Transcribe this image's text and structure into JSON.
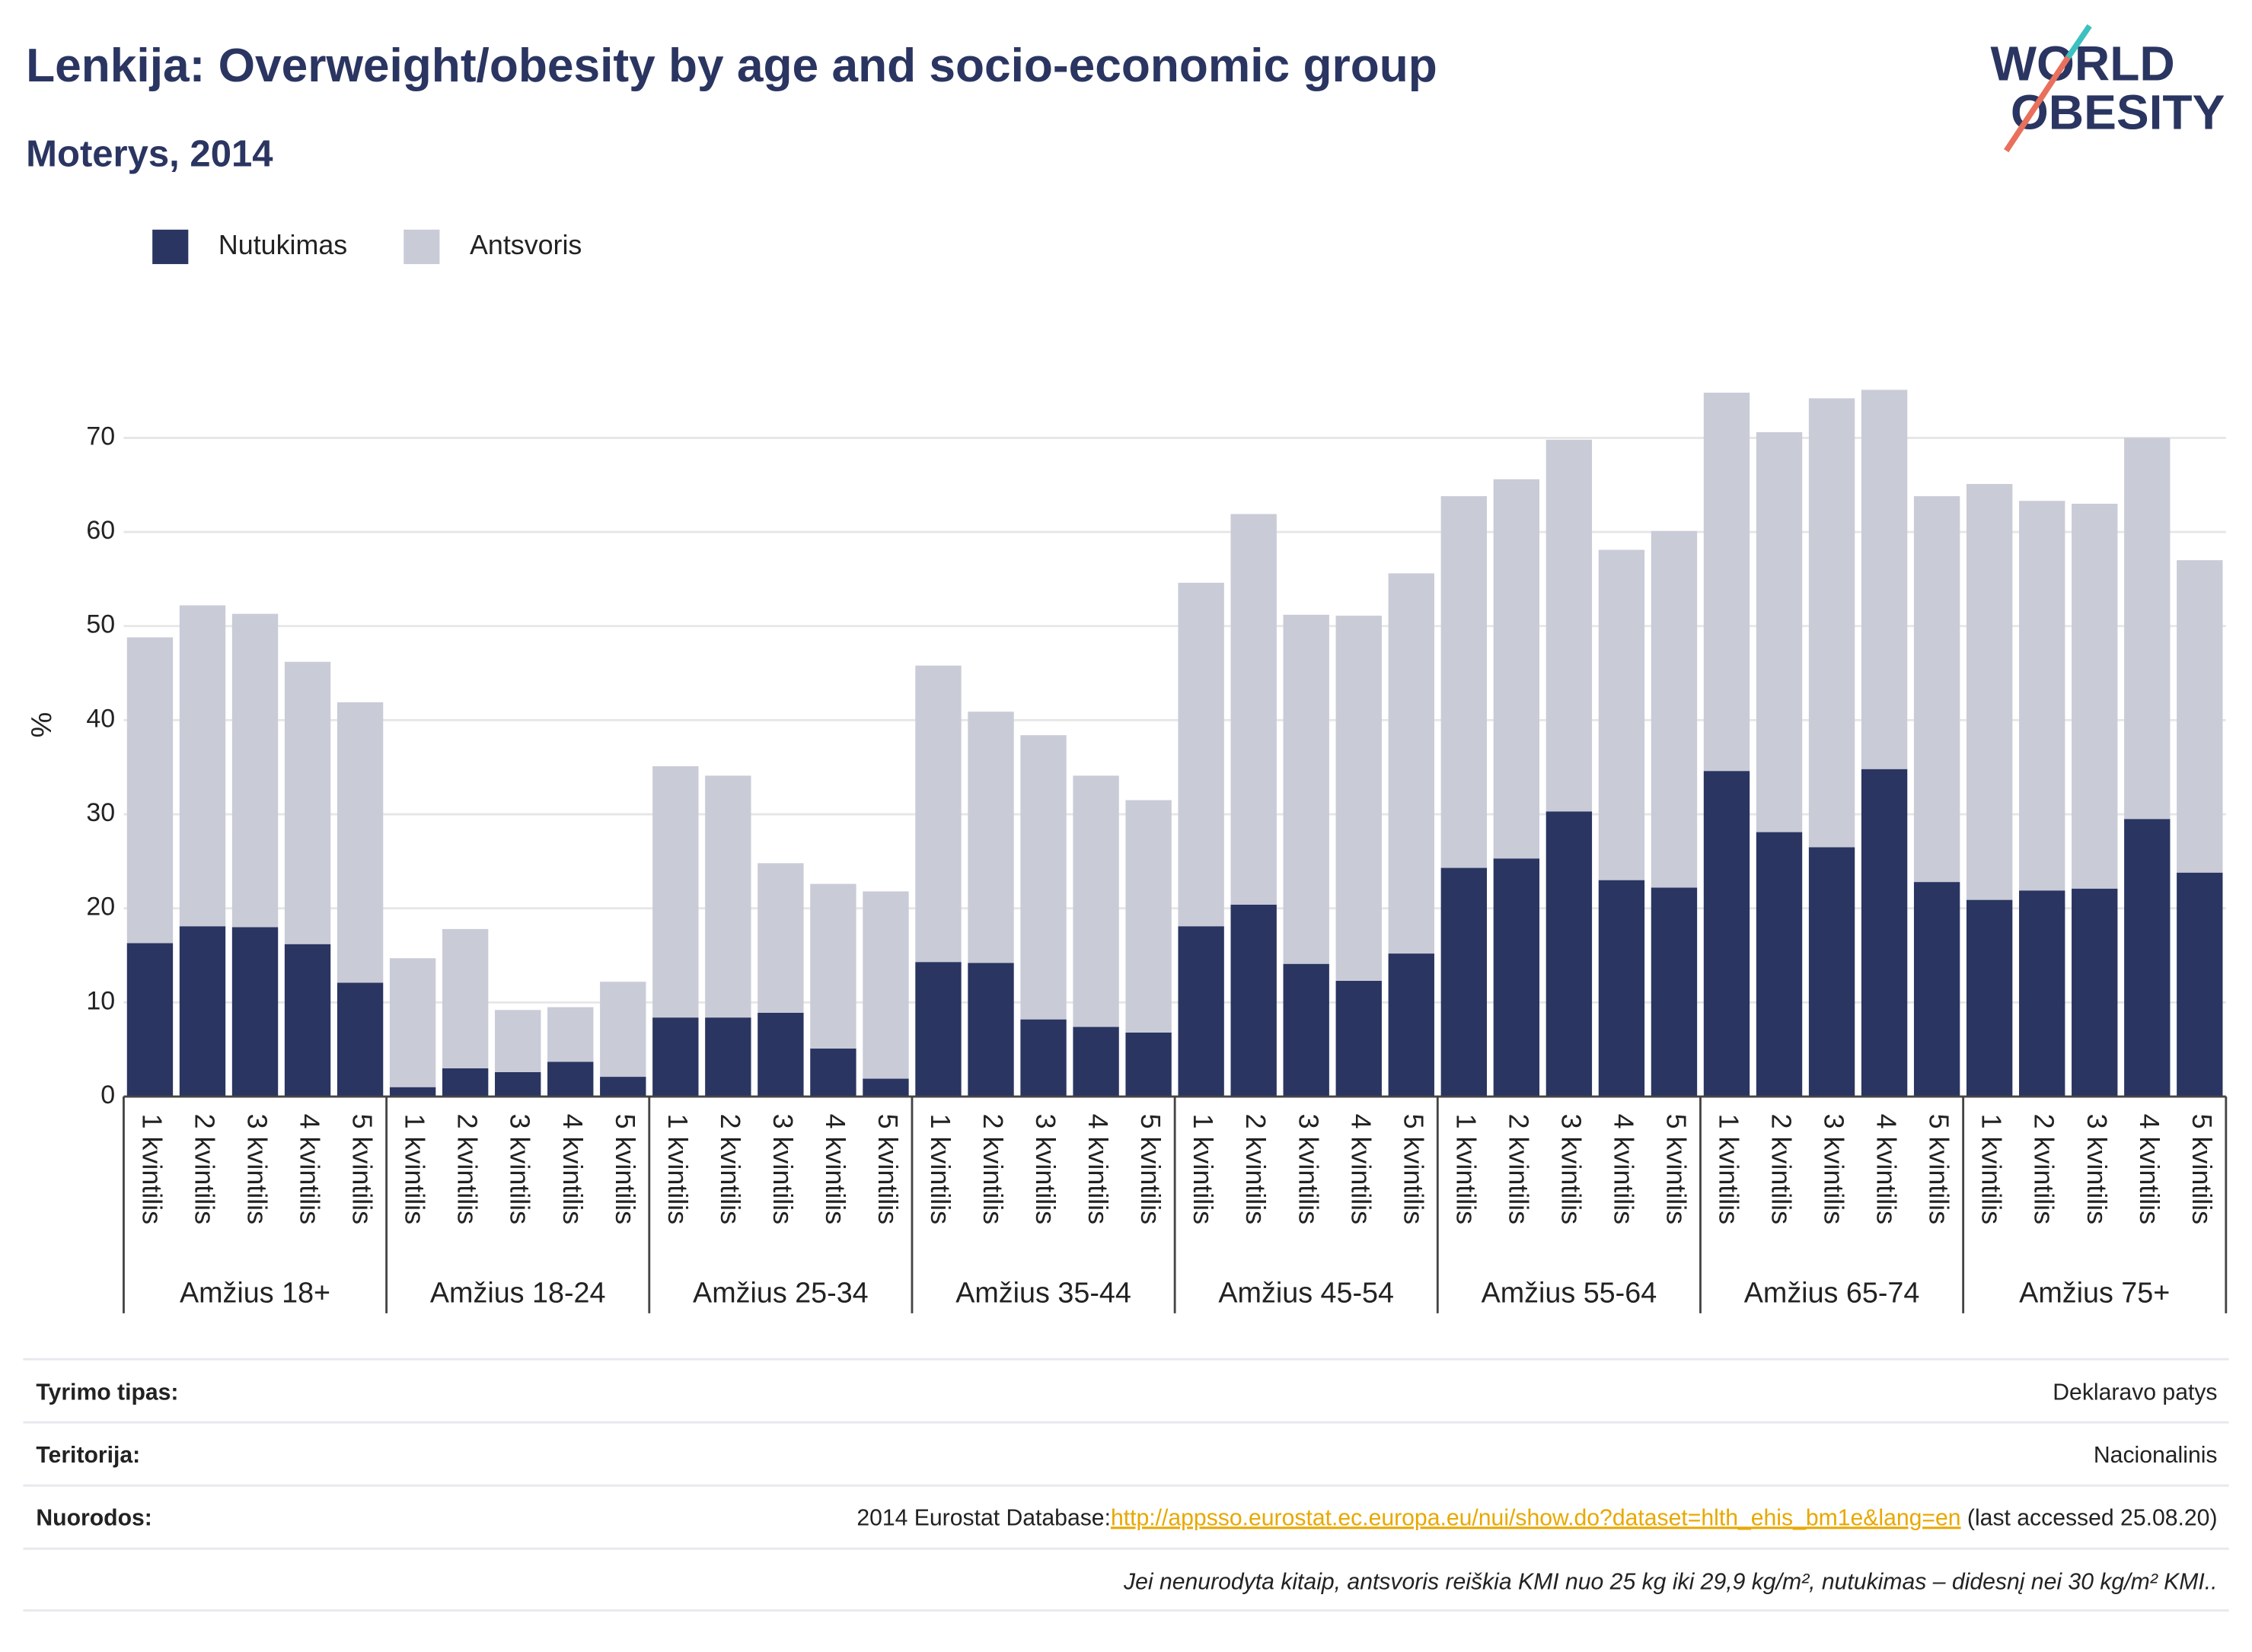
{
  "chart_data": {
    "type": "stacked_bar",
    "title": "Lenkija: Overweight/obesity by age and socio-economic group",
    "subtitle": "Moterys, 2014",
    "y_label": "%",
    "logo": [
      "WORLD",
      "OBESITY"
    ],
    "categories": [
      "1 kvintilis",
      "2 kvintilis",
      "3 kvintilis",
      "4 kvintilis",
      "5 kvintilis",
      "1 kvintilis",
      "2 kvintilis",
      "3 kvintilis",
      "4 kvintilis",
      "5 kvintilis",
      "1 kvintilis",
      "2 kvintilis",
      "3 kvintilis",
      "4 kvintilis",
      "5 kvintilis",
      "1 kvintilis",
      "2 kvintilis",
      "3 kvintilis",
      "4 kvintilis",
      "5 kvintilis",
      "1 kvintilis",
      "2 kvintilis",
      "3 kvintilis",
      "4 kvintilis",
      "5 kvintilis",
      "1 kvintilis",
      "2 kvintilis",
      "3 kvintilis",
      "4 kvintilis",
      "5 kvintilis",
      "1 kvintilis",
      "2 kvintilis",
      "3 kvintilis",
      "4 kvintilis",
      "5 kvintilis",
      "1 kvintilis",
      "2 kvintilis",
      "3 kvintilis",
      "4 kvintilis",
      "5 kvintilis"
    ],
    "groups": [
      "Amžius 18+",
      "Amžius 18-24",
      "Amžius 25-34",
      "Amžius 35-44",
      "Amžius 45-54",
      "Amžius 55-64",
      "Amžius 65-74",
      "Amžius 75+"
    ],
    "series": [
      {
        "name": "Nutukimas",
        "color": "#2a3561",
        "values": [
          16.3,
          18.1,
          18.0,
          16.2,
          12.1,
          1.0,
          3.0,
          2.6,
          3.7,
          2.1,
          8.4,
          8.4,
          8.9,
          5.1,
          1.9,
          14.3,
          14.2,
          8.2,
          7.4,
          6.8,
          18.1,
          20.4,
          14.1,
          12.3,
          15.2,
          24.3,
          25.3,
          30.3,
          23.0,
          22.2,
          34.6,
          28.1,
          26.5,
          34.8,
          22.8,
          20.9,
          21.9,
          22.1,
          29.5,
          23.8
        ]
      },
      {
        "name": "Antsvoris",
        "color": "#c9cbd7",
        "values": [
          32.5,
          34.1,
          33.3,
          30.0,
          29.8,
          13.7,
          14.8,
          6.6,
          5.8,
          10.1,
          26.7,
          25.7,
          15.9,
          17.5,
          19.9,
          31.5,
          26.7,
          30.2,
          26.7,
          24.7,
          36.5,
          41.5,
          37.1,
          38.8,
          40.4,
          39.5,
          40.3,
          39.5,
          35.1,
          37.9,
          40.2,
          42.5,
          47.7,
          40.3,
          41.0,
          44.2,
          41.4,
          40.9,
          40.5,
          33.2
        ]
      }
    ],
    "ylim": [
      0,
      80
    ],
    "yticks": [
      0,
      10,
      20,
      30,
      40,
      50,
      60,
      70
    ],
    "grid": true
  },
  "footer": {
    "rows": [
      {
        "label": "Tyrimo tipas:",
        "value": [
          "Deklaravo patys"
        ]
      },
      {
        "label": "Teritorija:",
        "value": [
          "Nacionalinis"
        ]
      },
      {
        "label": "Nuorodos:",
        "value": [
          "2014 Eurostat Database:",
          "http://appsso.eurostat.ec.europa.eu/nui/show.do?dataset=hlth_ehis_bm1e&lang=en",
          " (last accessed 25.08.20)"
        ]
      }
    ],
    "note": "Jei nenurodyta kitaip, antsvoris reiškia KMI nuo 25 kg iki 29,9 kg/m², nutukimas – didesnį nei 30 kg/m² KMI.."
  }
}
